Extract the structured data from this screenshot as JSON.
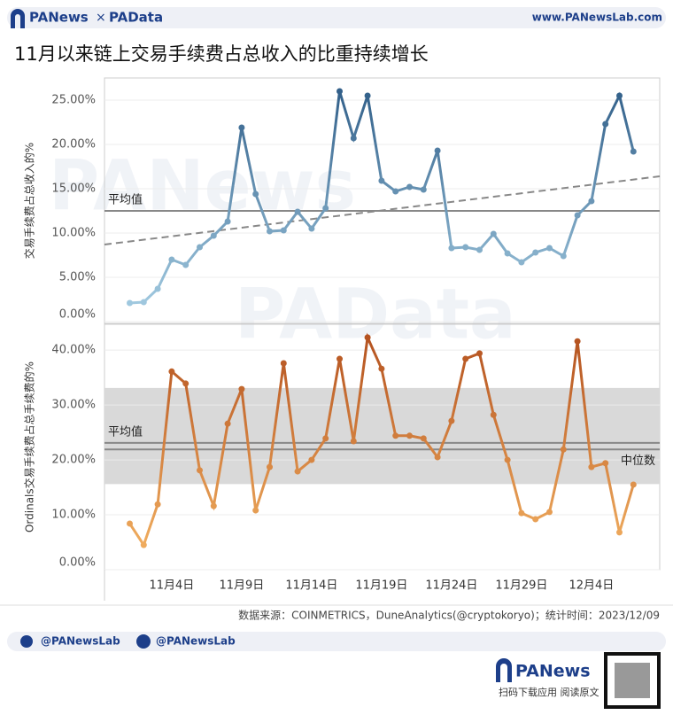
{
  "header": {
    "brand_left": "PANews",
    "brand_sep": "×",
    "brand_right": "PAData",
    "site": "www.PANewsLab.com"
  },
  "watermarks": [
    "PANews",
    "PAData"
  ],
  "chart_data": [
    {
      "type": "line",
      "title": "11月以来链上交易手续费占总收入的比重持续增长",
      "y_label": "交易手续费占总收入的%",
      "categories": [
        null,
        null,
        null,
        "11月4日",
        null,
        null,
        null,
        null,
        "11月9日",
        null,
        null,
        null,
        null,
        "11月14日",
        null,
        null,
        null,
        null,
        "11月19日",
        null,
        null,
        null,
        null,
        "11月24日",
        null,
        null,
        null,
        null,
        "11月29日",
        null,
        null,
        null,
        null,
        "12月4日",
        null,
        null,
        null
      ],
      "series": [
        {
          "color_low": "#a9d1e6",
          "color_high": "#2c5a85",
          "values": [
            2.1,
            2.2,
            3.7,
            7.0,
            6.4,
            8.4,
            9.7,
            11.3,
            21.9,
            14.4,
            10.2,
            10.3,
            12.4,
            10.5,
            12.8,
            26.0,
            20.7,
            25.5,
            15.9,
            14.7,
            15.2,
            14.9,
            19.3,
            8.3,
            8.4,
            8.1,
            9.9,
            7.7,
            6.7,
            7.8,
            8.3,
            7.4,
            12.0,
            13.6,
            22.3,
            25.5,
            19.2
          ]
        }
      ],
      "ylim": [
        0,
        27.5
      ],
      "yticks": [
        {
          "value": 0,
          "label": "0.00%"
        },
        {
          "value": 5,
          "label": "5.00%"
        },
        {
          "value": 10,
          "label": "10.00%"
        },
        {
          "value": 15,
          "label": "15.00%"
        },
        {
          "value": 20,
          "label": "20.00%"
        },
        {
          "value": 25,
          "label": "25.00%"
        }
      ],
      "average": {
        "label": "平均值",
        "value": 12.5
      },
      "trend": {
        "values": [
          8.7,
          16.4
        ]
      },
      "grid": true
    },
    {
      "type": "line",
      "y_label": "Ordinals交易手续费占总手续费的%",
      "series": [
        {
          "color_low": "#f6b665",
          "color_high": "#b14d1c",
          "values": [
            8.4,
            4.5,
            11.9,
            36.1,
            33.9,
            18.1,
            11.6,
            26.6,
            32.9,
            10.8,
            18.7,
            37.6,
            17.9,
            20.0,
            23.9,
            38.4,
            23.4,
            42.3,
            36.6,
            24.4,
            24.4,
            23.9,
            20.5,
            27.1,
            38.4,
            39.4,
            28.2,
            20.0,
            10.3,
            9.2,
            10.5,
            21.9,
            41.6,
            18.7,
            19.4,
            6.8,
            15.5
          ]
        }
      ],
      "ylim": [
        0,
        44.7
      ],
      "yticks": [
        {
          "value": 0,
          "label": "0.00%"
        },
        {
          "value": 10,
          "label": "10.00%"
        },
        {
          "value": 20,
          "label": "20.00%"
        },
        {
          "value": 30,
          "label": "30.00%"
        },
        {
          "value": 40,
          "label": "40.00%"
        }
      ],
      "average": {
        "label": "平均值",
        "value": 23.1
      },
      "median": {
        "label": "中位数",
        "value": 21.9
      },
      "band": {
        "values": [
          15.6,
          33.1
        ]
      },
      "grid": true
    }
  ],
  "footer": {
    "source": "数据来源：COINMETRICS，DuneAnalytics(@cryptokoryo)；统计时间：2023/12/09",
    "twitter": "@PANewsLab",
    "facebook": "@PANewsLab",
    "app": "PANews",
    "app_note": "扫码下载应用 阅读原文"
  }
}
